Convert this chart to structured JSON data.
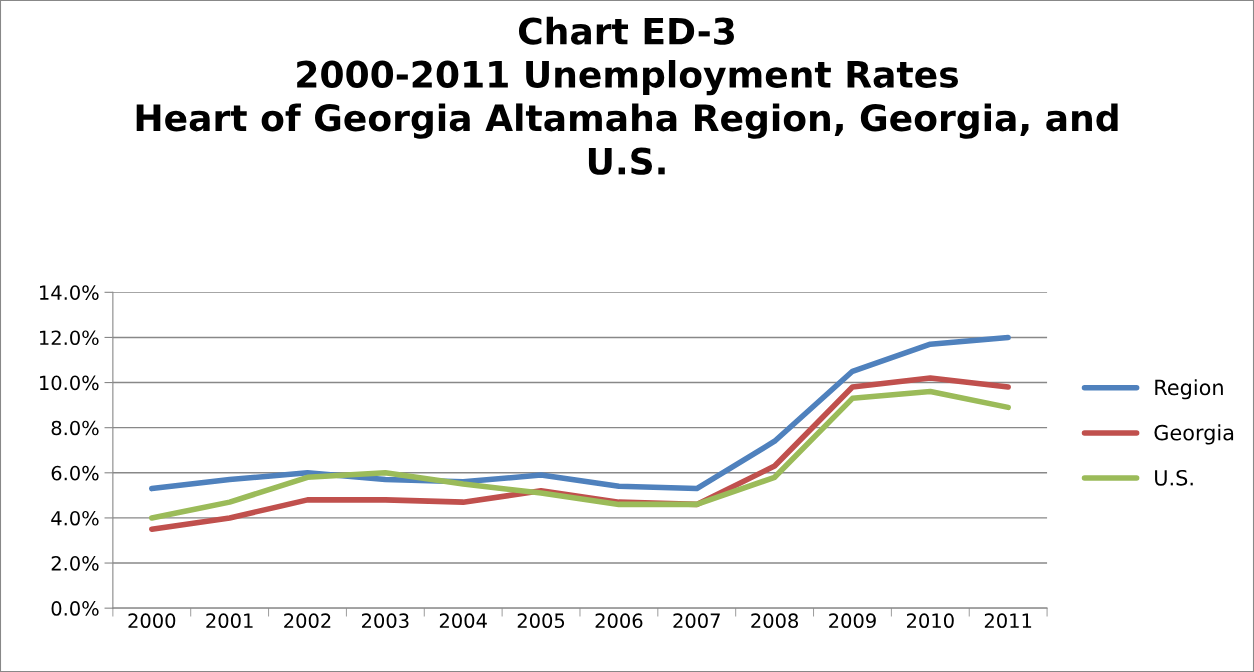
{
  "chart_data": {
    "type": "line",
    "title": "Chart ED-3\n2000-2011 Unemployment Rates\nHeart of Georgia Altamaha Region, Georgia, and\nU.S.",
    "categories": [
      "2000",
      "2001",
      "2002",
      "2003",
      "2004",
      "2005",
      "2006",
      "2007",
      "2008",
      "2009",
      "2010",
      "2011"
    ],
    "series": [
      {
        "name": "Region",
        "color": "#4f81bd",
        "values": [
          5.3,
          5.7,
          6.0,
          5.7,
          5.6,
          5.9,
          5.4,
          5.3,
          7.4,
          10.5,
          11.7,
          12.0
        ]
      },
      {
        "name": "Georgia",
        "color": "#c0504d",
        "values": [
          3.5,
          4.0,
          4.8,
          4.8,
          4.7,
          5.2,
          4.7,
          4.6,
          6.3,
          9.8,
          10.2,
          9.8
        ]
      },
      {
        "name": "U.S.",
        "color": "#9bbb59",
        "values": [
          4.0,
          4.7,
          5.8,
          6.0,
          5.5,
          5.1,
          4.6,
          4.6,
          5.8,
          9.3,
          9.6,
          8.9
        ]
      }
    ],
    "ylim": [
      0,
      14
    ],
    "yticks": [
      {
        "value": 0,
        "label": "0.0%"
      },
      {
        "value": 2,
        "label": "2.0%"
      },
      {
        "value": 4,
        "label": "4.0%"
      },
      {
        "value": 6,
        "label": "6.0%"
      },
      {
        "value": 8,
        "label": "8.0%"
      },
      {
        "value": 10,
        "label": "10.0%"
      },
      {
        "value": 12,
        "label": "12.0%"
      },
      {
        "value": 14,
        "label": "14.0%"
      }
    ],
    "grid": "y",
    "legend": "right",
    "marker": "none",
    "line_style": "solid"
  }
}
